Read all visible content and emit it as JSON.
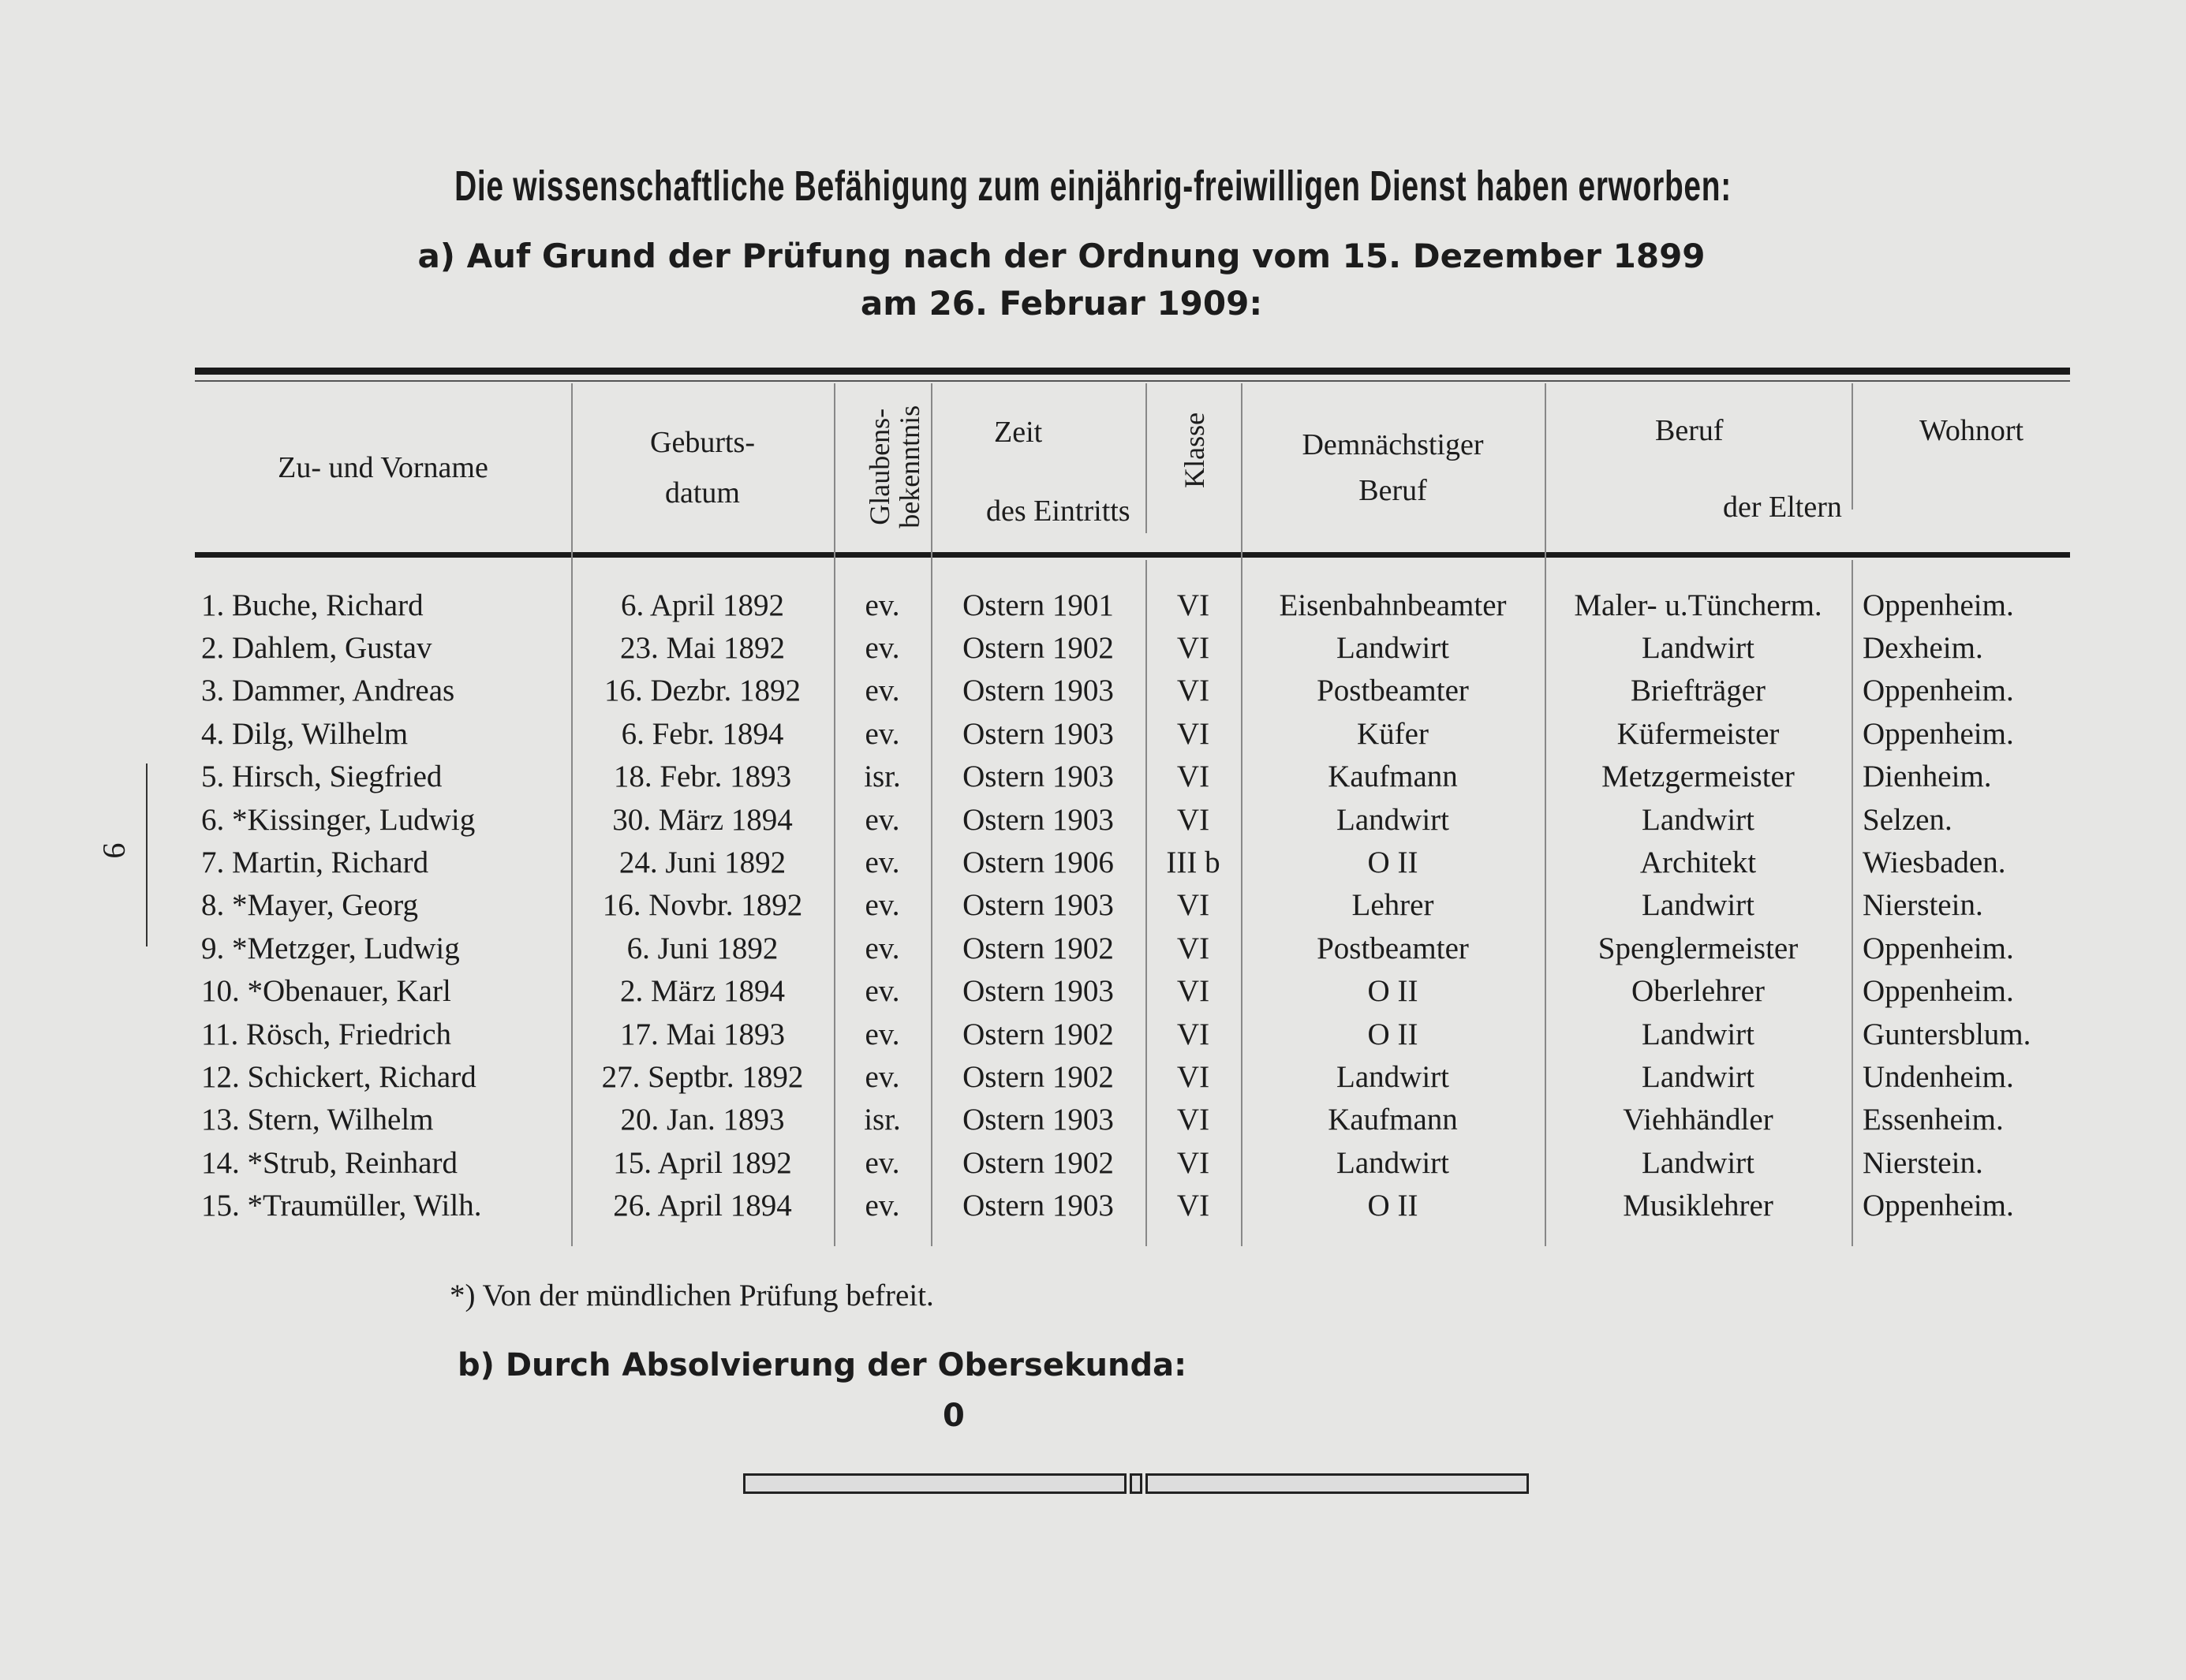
{
  "title": "Die wissenschaftliche Befähigung zum einjährig-freiwilligen Dienst haben erworben:",
  "section_a": {
    "line1": "a) Auf Grund der Prüfung nach der Ordnung vom 15. Dezember 1899",
    "line2": "am 26. Februar 1909:"
  },
  "table": {
    "headers": {
      "name": "Zu- und Vorname",
      "birth": [
        "Geburts-",
        "datum"
      ],
      "religion": [
        "Glaubens-",
        "bekenntnis"
      ],
      "entry_time": "Zeit",
      "entry_class": "Klasse",
      "entry_common": "des Eintritts",
      "future_job": [
        "Demnächstiger",
        "Beruf"
      ],
      "parents_job": "Beruf",
      "parents_home": "Wohnort",
      "parents_common": "der Eltern"
    },
    "rows": [
      [
        "1. Buche, Richard",
        "6. April 1892",
        "ev.",
        "Ostern 1901",
        "VI",
        "Eisenbahnbeamter",
        "Maler- u.Tüncherm.",
        "Oppenheim."
      ],
      [
        "2. Dahlem, Gustav",
        "23. Mai 1892",
        "ev.",
        "Ostern 1902",
        "VI",
        "Landwirt",
        "Landwirt",
        "Dexheim."
      ],
      [
        "3. Dammer, Andreas",
        "16. Dezbr. 1892",
        "ev.",
        "Ostern 1903",
        "VI",
        "Postbeamter",
        "Briefträger",
        "Oppenheim."
      ],
      [
        "4. Dilg, Wilhelm",
        "6. Febr. 1894",
        "ev.",
        "Ostern 1903",
        "VI",
        "Küfer",
        "Küfermeister",
        "Oppenheim."
      ],
      [
        "5. Hirsch, Siegfried",
        "18. Febr. 1893",
        "isr.",
        "Ostern 1903",
        "VI",
        "Kaufmann",
        "Metzgermeister",
        "Dienheim."
      ],
      [
        "6. *Kissinger, Ludwig",
        "30. März 1894",
        "ev.",
        "Ostern 1903",
        "VI",
        "Landwirt",
        "Landwirt",
        "Selzen."
      ],
      [
        "7. Martin, Richard",
        "24. Juni 1892",
        "ev.",
        "Ostern 1906",
        "III b",
        "O II",
        "Architekt",
        "Wiesbaden."
      ],
      [
        "8. *Mayer, Georg",
        "16. Novbr. 1892",
        "ev.",
        "Ostern 1903",
        "VI",
        "Lehrer",
        "Landwirt",
        "Nierstein."
      ],
      [
        "9. *Metzger, Ludwig",
        "6. Juni 1892",
        "ev.",
        "Ostern 1902",
        "VI",
        "Postbeamter",
        "Spenglermeister",
        "Oppenheim."
      ],
      [
        "10. *Obenauer, Karl",
        "2. März 1894",
        "ev.",
        "Ostern 1903",
        "VI",
        "O II",
        "Oberlehrer",
        "Oppenheim."
      ],
      [
        "11. Rösch, Friedrich",
        "17. Mai 1893",
        "ev.",
        "Ostern 1902",
        "VI",
        "O II",
        "Landwirt",
        "Guntersblum."
      ],
      [
        "12. Schickert, Richard",
        "27. Septbr. 1892",
        "ev.",
        "Ostern 1902",
        "VI",
        "Landwirt",
        "Landwirt",
        "Undenheim."
      ],
      [
        "13. Stern, Wilhelm",
        "20. Jan. 1893",
        "isr.",
        "Ostern 1903",
        "VI",
        "Kaufmann",
        "Viehhändler",
        "Essenheim."
      ],
      [
        "14. *Strub, Reinhard",
        "15. April 1892",
        "ev.",
        "Ostern 1902",
        "VI",
        "Landwirt",
        "Landwirt",
        "Nierstein."
      ],
      [
        "15. *Traumüller, Wilh.",
        "26. April 1894",
        "ev.",
        "Ostern 1903",
        "VI",
        "O II",
        "Musiklehrer",
        "Oppenheim."
      ]
    ]
  },
  "footnote": "*) Von der mündlichen Prüfung befreit.",
  "section_b": {
    "heading": "b) Durch Absolvierung der Obersekunda:",
    "value": "0"
  },
  "page_number": "9"
}
